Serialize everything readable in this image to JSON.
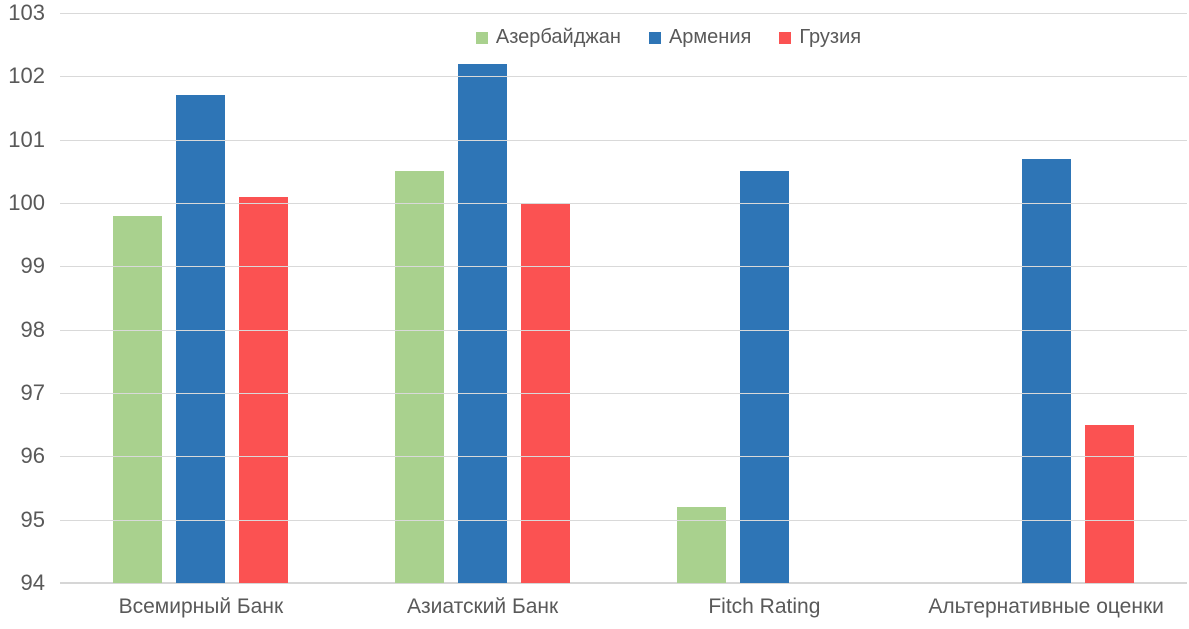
{
  "chart_data": {
    "type": "bar",
    "title": "",
    "categories": [
      "Всемирный Банк",
      "Азиатский Банк",
      "Fitch Rating",
      "Альтернативные оценки"
    ],
    "series": [
      {
        "name": "Азербайджан",
        "color": "#A9D18E",
        "values": [
          99.8,
          100.5,
          95.2,
          null
        ]
      },
      {
        "name": "Армения",
        "color": "#2E75B6",
        "values": [
          101.7,
          102.2,
          100.5,
          100.7
        ]
      },
      {
        "name": "Грузия",
        "color": "#FB5252",
        "values": [
          100.1,
          100.0,
          null,
          96.5
        ]
      }
    ],
    "ylim": [
      94,
      103
    ],
    "yticks": [
      94,
      95,
      96,
      97,
      98,
      99,
      100,
      101,
      102,
      103
    ],
    "grid": true,
    "legend_position": "top-center",
    "colors": {
      "background": "#ffffff",
      "gridline": "#d9d9d9",
      "axis_text": "#595959"
    }
  }
}
